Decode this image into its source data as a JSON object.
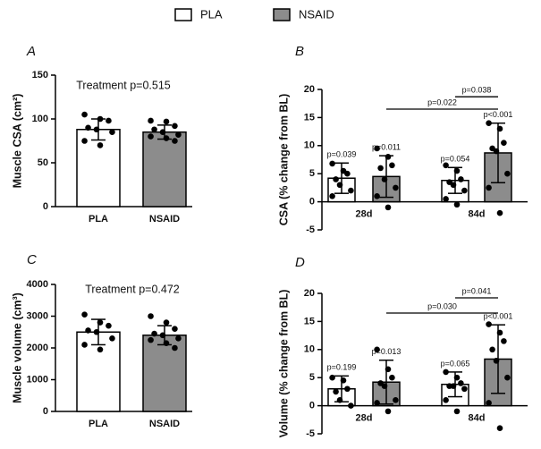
{
  "legend": [
    {
      "name": "PLA",
      "color": "#ffffff"
    },
    {
      "name": "NSAID",
      "color": "#8c8c8c"
    }
  ],
  "chart_data": [
    {
      "type": "bar",
      "panel": "A",
      "ylabel": "Muscle CSA (cm²)",
      "annotation": "Treatment p=0.515",
      "categories": [
        "PLA",
        "NSAID"
      ],
      "values": [
        88,
        85
      ],
      "errors": [
        12,
        8
      ],
      "points": [
        [
          105,
          100,
          98,
          90,
          88,
          85,
          75,
          70
        ],
        [
          98,
          97,
          92,
          88,
          85,
          82,
          80,
          78,
          75
        ]
      ],
      "ylim": [
        0,
        150
      ],
      "yticks": [
        0,
        50,
        100,
        150
      ]
    },
    {
      "type": "grouped-bar",
      "panel": "B",
      "ylabel": "CSA (% change from BL)",
      "categories": [
        "28d",
        "84d"
      ],
      "series": [
        {
          "values": [
            4.2,
            3.8
          ],
          "errors": [
            2.7,
            2.3
          ],
          "p_labels": [
            "p=0.039",
            "p=0.054"
          ],
          "points": [
            [
              6.8,
              5.5,
              5,
              4,
              3,
              2,
              1
            ],
            [
              6.5,
              5.5,
              4,
              3.5,
              3,
              2,
              0.5,
              -0.5
            ]
          ]
        },
        {
          "values": [
            4.5,
            8.7
          ],
          "errors": [
            3.7,
            5.3
          ],
          "p_labels": [
            "p=0.011",
            "p<0.001"
          ],
          "points": [
            [
              9.5,
              8,
              6.5,
              6,
              4,
              2.5,
              1,
              -1
            ],
            [
              14,
              13,
              10.5,
              9.5,
              9,
              5,
              2.5,
              -2
            ]
          ]
        }
      ],
      "brackets": [
        {
          "label": "p=0.022",
          "y": 16.5
        },
        {
          "label": "p=0.038",
          "y": 18.7
        }
      ],
      "ylim": [
        -5,
        20
      ],
      "yticks": [
        -5,
        0,
        5,
        10,
        15,
        20
      ]
    },
    {
      "type": "bar",
      "panel": "C",
      "ylabel": "Muscle volume (cm³)",
      "annotation": "Treatment p=0.472",
      "categories": [
        "PLA",
        "NSAID"
      ],
      "values": [
        2500,
        2400
      ],
      "errors": [
        400,
        300
      ],
      "points": [
        [
          3050,
          2800,
          2700,
          2550,
          2500,
          2300,
          2100,
          1950
        ],
        [
          3000,
          2800,
          2600,
          2450,
          2400,
          2300,
          2250,
          2150,
          2000
        ]
      ],
      "ylim": [
        0,
        4000
      ],
      "yticks": [
        0,
        1000,
        2000,
        3000,
        4000
      ]
    },
    {
      "type": "grouped-bar",
      "panel": "D",
      "ylabel": "Volume (% change from BL)",
      "categories": [
        "28d",
        "84d"
      ],
      "series": [
        {
          "values": [
            3,
            3.8
          ],
          "errors": [
            2.3,
            2.2
          ],
          "p_labels": [
            "p=0.199",
            "p=0.065"
          ],
          "points": [
            [
              5,
              4.5,
              3,
              2.5,
              1,
              0
            ],
            [
              6,
              5,
              4,
              3.5,
              3.5,
              3,
              1,
              -1
            ]
          ]
        },
        {
          "values": [
            4.2,
            8.3
          ],
          "errors": [
            3.9,
            6.1
          ],
          "p_labels": [
            "p=0.013",
            "p<0.001"
          ],
          "points": [
            [
              10,
              6.5,
              5,
              4,
              3.5,
              1,
              0.5,
              -1
            ],
            [
              14.5,
              13,
              11.5,
              10,
              8,
              5,
              0.5,
              -4
            ]
          ]
        }
      ],
      "brackets": [
        {
          "label": "p=0.030",
          "y": 16.5
        },
        {
          "label": "p=0.041",
          "y": 19.2
        }
      ],
      "ylim": [
        -5,
        20
      ],
      "yticks": [
        -5,
        0,
        5,
        10,
        15,
        20
      ]
    }
  ]
}
